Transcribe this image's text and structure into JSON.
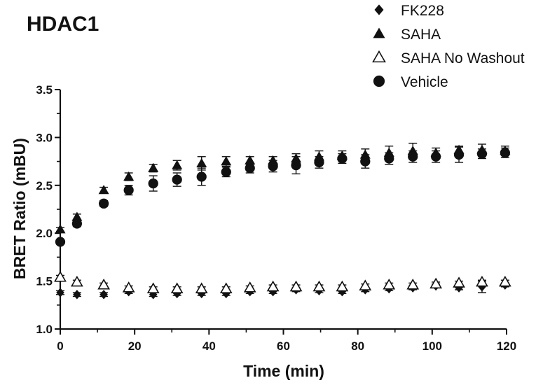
{
  "chart_data": {
    "type": "scatter",
    "title": "HDAC1",
    "xlabel": "Time (min)",
    "ylabel": "BRET Ratio (mBU)",
    "xlim": [
      0,
      120
    ],
    "ylim": [
      1.0,
      3.5
    ],
    "xticks": [
      "0",
      "20",
      "40",
      "60",
      "80",
      "100",
      "120"
    ],
    "yticks": [
      "1.0",
      "1.5",
      "2.0",
      "2.5",
      "3.0",
      "3.5"
    ],
    "legend_position": "top-right",
    "grid": false,
    "x": [
      0,
      4.5,
      11.7,
      18.4,
      25,
      31.4,
      38,
      44.6,
      51,
      57.2,
      63.4,
      69.6,
      75.8,
      82,
      88.4,
      94.8,
      101,
      107.2,
      113.4,
      119.6
    ],
    "series": [
      {
        "name": "FK228",
        "marker": "diamond",
        "values": [
          1.38,
          1.36,
          1.36,
          1.39,
          1.36,
          1.37,
          1.37,
          1.37,
          1.39,
          1.39,
          1.41,
          1.4,
          1.39,
          1.41,
          1.42,
          1.43,
          1.45,
          1.43,
          1.44,
          1.46
        ],
        "errors": [
          0.02,
          0.02,
          0.02,
          0.02,
          0.02,
          0.02,
          0.02,
          0.02,
          0.02,
          0.02,
          0.02,
          0.02,
          0.02,
          0.02,
          0.02,
          0.02,
          0.02,
          0.02,
          0.06,
          0.02
        ]
      },
      {
        "name": "SAHA",
        "marker": "triangle",
        "values": [
          2.04,
          2.17,
          2.45,
          2.59,
          2.68,
          2.71,
          2.73,
          2.75,
          2.76,
          2.76,
          2.78,
          2.8,
          2.81,
          2.82,
          2.84,
          2.86,
          2.84,
          2.87,
          2.87,
          2.86
        ],
        "errors": [
          0.02,
          0.03,
          0.03,
          0.04,
          0.04,
          0.05,
          0.07,
          0.05,
          0.04,
          0.04,
          0.05,
          0.06,
          0.05,
          0.06,
          0.07,
          0.08,
          0.05,
          0.04,
          0.06,
          0.05
        ]
      },
      {
        "name": "SAHA No Washout",
        "marker": "triangle-open",
        "values": [
          1.54,
          1.49,
          1.46,
          1.43,
          1.42,
          1.42,
          1.42,
          1.42,
          1.43,
          1.44,
          1.44,
          1.44,
          1.44,
          1.45,
          1.46,
          1.46,
          1.47,
          1.48,
          1.49,
          1.49
        ],
        "errors": [
          0.02,
          0.02,
          0.02,
          0.02,
          0.02,
          0.02,
          0.02,
          0.02,
          0.02,
          0.02,
          0.02,
          0.02,
          0.02,
          0.02,
          0.02,
          0.02,
          0.02,
          0.02,
          0.02,
          0.02
        ]
      },
      {
        "name": "Vehicle",
        "marker": "circle",
        "values": [
          1.91,
          2.1,
          2.31,
          2.45,
          2.52,
          2.56,
          2.59,
          2.64,
          2.68,
          2.7,
          2.71,
          2.74,
          2.78,
          2.75,
          2.78,
          2.8,
          2.8,
          2.82,
          2.83,
          2.84
        ],
        "errors": [
          0.02,
          0.03,
          0.03,
          0.05,
          0.08,
          0.07,
          0.09,
          0.05,
          0.05,
          0.06,
          0.09,
          0.06,
          0.05,
          0.07,
          0.06,
          0.06,
          0.06,
          0.08,
          0.05,
          0.05
        ]
      }
    ]
  }
}
